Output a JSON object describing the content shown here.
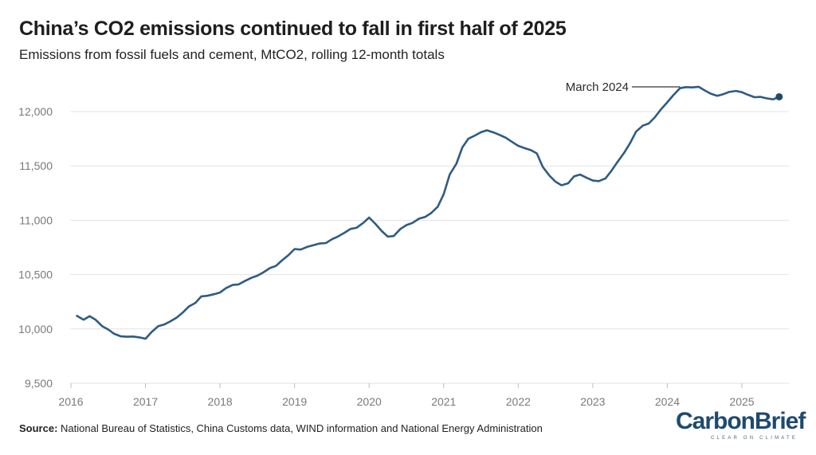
{
  "title": "China’s CO2 emissions continued to fall in first half of 2025",
  "subtitle": "Emissions from fossil fuels and cement, MtCO2, rolling 12-month totals",
  "source_label": "Source:",
  "source_text": " National Bureau of Statistics, China Customs data, WIND information and National Energy Administration",
  "logo": {
    "text": "CarbonBrief",
    "tagline": "CLEAR ON CLIMATE"
  },
  "colors": {
    "line": "#2e5b84",
    "grid": "#e3e3e3",
    "text": "#7a7a7a"
  },
  "chart_data": {
    "type": "line",
    "title": "China’s CO2 emissions continued to fall in first half of 2025",
    "xlabel": "",
    "ylabel": "MtCO2",
    "xlim": [
      2016,
      2025.6
    ],
    "ylim": [
      9500,
      12200
    ],
    "yticks": [
      9500,
      10000,
      10500,
      11000,
      11500,
      12000
    ],
    "ytick_labels": [
      "9,500",
      "10,000",
      "10,500",
      "11,000",
      "11,500",
      "12,000"
    ],
    "xticks": [
      2016,
      2017,
      2018,
      2019,
      2020,
      2021,
      2022,
      2023,
      2024,
      2025
    ],
    "xtick_labels": [
      "2016",
      "2017",
      "2018",
      "2019",
      "2020",
      "2021",
      "2022",
      "2023",
      "2024",
      "2025"
    ],
    "grid": true,
    "series": [
      {
        "name": "China CO2 emissions (rolling 12-month total)",
        "x": [
          2016.08,
          2016.17,
          2016.25,
          2016.33,
          2016.42,
          2016.5,
          2016.58,
          2016.67,
          2016.75,
          2016.83,
          2016.92,
          2017.0,
          2017.08,
          2017.17,
          2017.25,
          2017.33,
          2017.42,
          2017.5,
          2017.58,
          2017.67,
          2017.75,
          2017.83,
          2017.92,
          2018.0,
          2018.08,
          2018.17,
          2018.25,
          2018.33,
          2018.42,
          2018.5,
          2018.58,
          2018.67,
          2018.75,
          2018.83,
          2018.92,
          2019.0,
          2019.08,
          2019.17,
          2019.25,
          2019.33,
          2019.42,
          2019.5,
          2019.58,
          2019.67,
          2019.75,
          2019.83,
          2019.92,
          2020.0,
          2020.08,
          2020.17,
          2020.25,
          2020.33,
          2020.42,
          2020.5,
          2020.58,
          2020.67,
          2020.75,
          2020.83,
          2020.92,
          2021.0,
          2021.08,
          2021.17,
          2021.25,
          2021.33,
          2021.42,
          2021.5,
          2021.58,
          2021.67,
          2021.75,
          2021.83,
          2021.92,
          2022.0,
          2022.08,
          2022.17,
          2022.25,
          2022.33,
          2022.42,
          2022.5,
          2022.58,
          2022.67,
          2022.75,
          2022.83,
          2022.92,
          2023.0,
          2023.08,
          2023.17,
          2023.25,
          2023.33,
          2023.42,
          2023.5,
          2023.58,
          2023.67,
          2023.75,
          2023.83,
          2023.92,
          2024.0,
          2024.08,
          2024.17,
          2024.25,
          2024.33,
          2024.42,
          2024.5,
          2024.58,
          2024.67,
          2024.75,
          2024.83,
          2024.92,
          2025.0,
          2025.08,
          2025.17,
          2025.25,
          2025.33,
          2025.42,
          2025.5
        ],
        "values": [
          10120,
          10085,
          10118,
          10085,
          10025,
          9995,
          9955,
          9932,
          9928,
          9930,
          9922,
          9910,
          9970,
          10025,
          10040,
          10068,
          10105,
          10150,
          10205,
          10240,
          10300,
          10305,
          10320,
          10335,
          10375,
          10405,
          10410,
          10440,
          10470,
          10490,
          10520,
          10560,
          10580,
          10630,
          10680,
          10735,
          10730,
          10755,
          10770,
          10785,
          10790,
          10825,
          10850,
          10885,
          10920,
          10930,
          10975,
          11025,
          10970,
          10900,
          10850,
          10855,
          10920,
          10955,
          10975,
          11015,
          11030,
          11065,
          11125,
          11240,
          11420,
          11520,
          11670,
          11750,
          11780,
          11810,
          11828,
          11808,
          11785,
          11760,
          11720,
          11685,
          11665,
          11645,
          11615,
          11490,
          11410,
          11355,
          11322,
          11340,
          11405,
          11420,
          11390,
          11365,
          11360,
          11385,
          11455,
          11535,
          11620,
          11710,
          11815,
          11870,
          11890,
          11945,
          12025,
          12085,
          12150,
          12215,
          12225,
          12222,
          12228,
          12195,
          12165,
          12145,
          12160,
          12180,
          12190,
          12178,
          12155,
          12132,
          12135,
          12122,
          12112,
          12136
        ]
      }
    ],
    "annotations": [
      {
        "text": "March 2024",
        "x": 2024.17,
        "y": 12215
      }
    ]
  }
}
